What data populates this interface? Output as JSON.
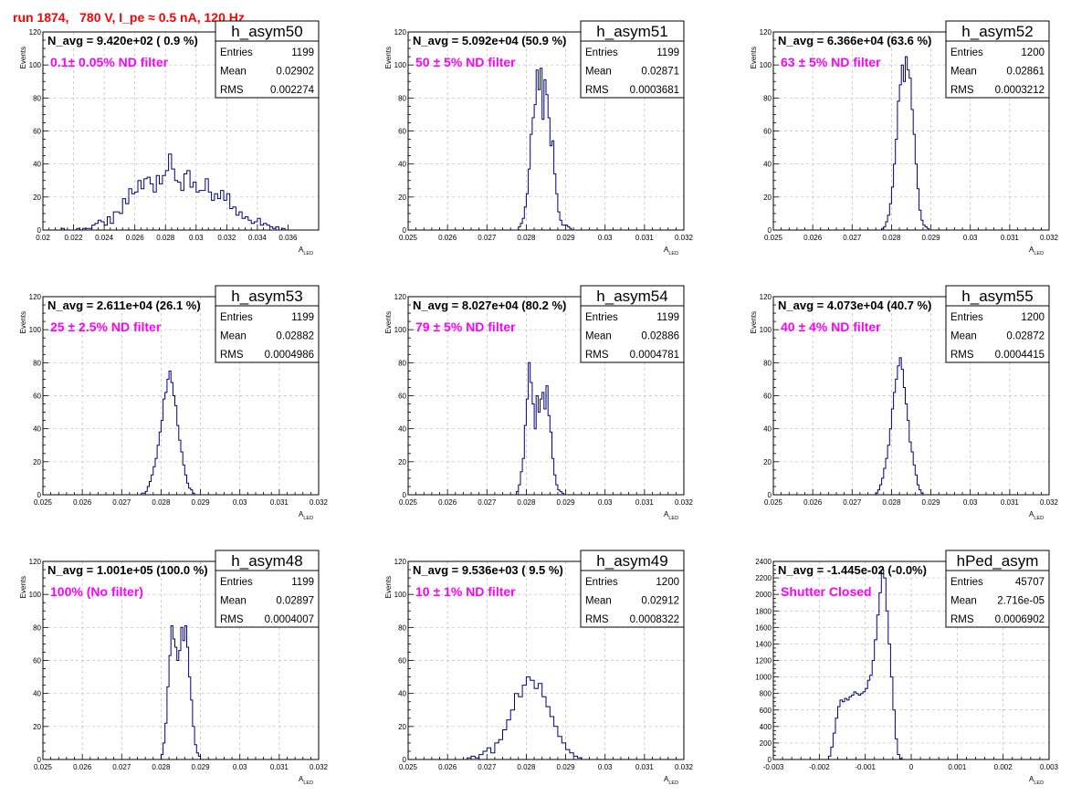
{
  "page_title": "run 1874,   780 V, I_pe ≈ 0.5 nA, 120 Hz",
  "colors": {
    "title": "#ff0000",
    "filter_label": "#ff00ff",
    "histogram": "#000080",
    "grid": "#bbbbbb"
  },
  "chart_data": [
    {
      "type": "histogram",
      "name": "h_asym50",
      "navg": "N_avg = 9.420e+02 ( 0.9 %)",
      "filter": "0.1± 0.05% ND filter",
      "stats": {
        "entries": "1199",
        "mean": "0.02902",
        "rms": "0.002274"
      },
      "xlabel": "A",
      "xlabel_sub": "LED",
      "ylabel": "Events",
      "xlim": [
        0.02,
        0.038
      ],
      "ylim": [
        0,
        120
      ],
      "xticks": [
        "0.02",
        "0.022",
        "0.024",
        "0.026",
        "0.028",
        "0.03",
        "0.032",
        "0.034",
        "0.036"
      ],
      "yticks": [
        "0",
        "20",
        "40",
        "60",
        "80",
        "100",
        "120"
      ],
      "grid": true,
      "bins_from": 0.0212,
      "bin_width": 0.0002,
      "values": [
        1,
        0,
        0,
        0,
        0,
        1,
        0,
        1,
        1,
        1,
        3,
        4,
        6,
        5,
        3,
        8,
        4,
        11,
        11,
        10,
        19,
        16,
        25,
        22,
        23,
        30,
        25,
        31,
        32,
        28,
        23,
        33,
        28,
        33,
        36,
        46,
        37,
        30,
        29,
        24,
        34,
        36,
        26,
        29,
        23,
        24,
        24,
        31,
        23,
        18,
        22,
        19,
        24,
        18,
        22,
        13,
        14,
        9,
        11,
        7,
        8,
        6,
        4,
        5,
        7,
        3,
        4,
        3,
        2,
        1,
        2,
        0,
        1
      ]
    },
    {
      "type": "histogram",
      "name": "h_asym51",
      "navg": "N_avg = 5.092e+04 (50.9 %)",
      "filter": "50 ± 5% ND filter",
      "stats": {
        "entries": "1199",
        "mean": "0.02871",
        "rms": "0.0003681"
      },
      "xlabel": "A",
      "xlabel_sub": "LED",
      "ylabel": "Events",
      "xlim": [
        0.025,
        0.032
      ],
      "ylim": [
        0,
        120
      ],
      "xticks": [
        "0.025",
        "0.026",
        "0.027",
        "0.028",
        "0.029",
        "0.03",
        "0.031",
        "0.032"
      ],
      "yticks": [
        "0",
        "20",
        "40",
        "60",
        "80",
        "100",
        "120"
      ],
      "grid": true,
      "bins_from": 0.0278,
      "bin_width": 5e-05,
      "values": [
        2,
        4,
        7,
        14,
        22,
        37,
        58,
        68,
        76,
        97,
        85,
        98,
        67,
        91,
        82,
        68,
        51,
        54,
        34,
        22,
        11,
        6,
        3,
        3,
        3,
        2,
        1
      ]
    },
    {
      "type": "histogram",
      "name": "h_asym52",
      "navg": "N_avg = 6.366e+04 (63.6 %)",
      "filter": "63 ± 5% ND filter",
      "stats": {
        "entries": "1200",
        "mean": "0.02861",
        "rms": "0.0003212"
      },
      "xlabel": "A",
      "xlabel_sub": "LED",
      "ylabel": "Events",
      "xlim": [
        0.025,
        0.032
      ],
      "ylim": [
        0,
        120
      ],
      "xticks": [
        "0.025",
        "0.026",
        "0.027",
        "0.028",
        "0.029",
        "0.03",
        "0.031",
        "0.032"
      ],
      "yticks": [
        "0",
        "20",
        "40",
        "60",
        "80",
        "100",
        "120"
      ],
      "grid": true,
      "bins_from": 0.02775,
      "bin_width": 5e-05,
      "values": [
        1,
        2,
        5,
        9,
        16,
        26,
        40,
        55,
        78,
        88,
        100,
        90,
        105,
        97,
        92,
        73,
        58,
        40,
        25,
        12,
        6,
        3,
        2,
        1
      ]
    },
    {
      "type": "histogram",
      "name": "h_asym53",
      "navg": "N_avg = 2.611e+04 (26.1 %)",
      "filter": "25 ± 2.5% ND filter",
      "stats": {
        "entries": "1199",
        "mean": "0.02882",
        "rms": "0.0004986"
      },
      "xlabel": "A",
      "xlabel_sub": "LED",
      "ylabel": "Events",
      "xlim": [
        0.025,
        0.032
      ],
      "ylim": [
        0,
        120
      ],
      "xticks": [
        "0.025",
        "0.026",
        "0.027",
        "0.028",
        "0.029",
        "0.03",
        "0.031",
        "0.032"
      ],
      "yticks": [
        "0",
        "20",
        "40",
        "60",
        "80",
        "100",
        "120"
      ],
      "grid": true,
      "bins_from": 0.0275,
      "bin_width": 5e-05,
      "values": [
        1,
        1,
        2,
        5,
        8,
        12,
        17,
        22,
        30,
        38,
        45,
        58,
        62,
        70,
        75,
        68,
        60,
        54,
        42,
        33,
        26,
        18,
        12,
        7,
        4,
        3,
        1
      ]
    },
    {
      "type": "histogram",
      "name": "h_asym54",
      "navg": "N_avg = 8.027e+04 (80.2 %)",
      "filter": "79 ± 5% ND filter",
      "stats": {
        "entries": "1199",
        "mean": "0.02886",
        "rms": "0.0004781"
      },
      "xlabel": "A",
      "xlabel_sub": "LED",
      "ylabel": "Events",
      "xlim": [
        0.025,
        0.032
      ],
      "ylim": [
        0,
        120
      ],
      "xticks": [
        "0.025",
        "0.026",
        "0.027",
        "0.028",
        "0.029",
        "0.03",
        "0.031",
        "0.032"
      ],
      "yticks": [
        "0",
        "20",
        "40",
        "60",
        "80",
        "100",
        "120"
      ],
      "grid": true,
      "bins_from": 0.02775,
      "bin_width": 5e-05,
      "values": [
        2,
        6,
        14,
        22,
        42,
        58,
        80,
        68,
        55,
        40,
        60,
        50,
        58,
        62,
        52,
        66,
        48,
        38,
        22,
        12,
        6,
        3,
        2,
        1
      ]
    },
    {
      "type": "histogram",
      "name": "h_asym55",
      "navg": "N_avg = 4.073e+04 (40.7 %)",
      "filter": "40 ± 4% ND filter",
      "stats": {
        "entries": "1200",
        "mean": "0.02872",
        "rms": "0.0004415"
      },
      "xlabel": "A",
      "xlabel_sub": "LED",
      "ylabel": "Events",
      "xlim": [
        0.025,
        0.032
      ],
      "ylim": [
        0,
        120
      ],
      "xticks": [
        "0.025",
        "0.026",
        "0.027",
        "0.028",
        "0.029",
        "0.03",
        "0.031",
        "0.032"
      ],
      "yticks": [
        "0",
        "20",
        "40",
        "60",
        "80",
        "100",
        "120"
      ],
      "grid": true,
      "bins_from": 0.0276,
      "bin_width": 5e-05,
      "values": [
        1,
        3,
        6,
        10,
        16,
        22,
        30,
        40,
        52,
        62,
        70,
        78,
        83,
        76,
        65,
        55,
        45,
        32,
        26,
        18,
        12,
        6,
        3,
        1
      ]
    },
    {
      "type": "histogram",
      "name": "h_asym48",
      "navg": "N_avg = 1.001e+05 (100.0 %)",
      "filter": "100% (No filter)",
      "stats": {
        "entries": "1199",
        "mean": "0.02897",
        "rms": "0.0004007"
      },
      "xlabel": "A",
      "xlabel_sub": "LED",
      "ylabel": "Events",
      "xlim": [
        0.025,
        0.032
      ],
      "ylim": [
        0,
        120
      ],
      "xticks": [
        "0.025",
        "0.026",
        "0.027",
        "0.028",
        "0.029",
        "0.03",
        "0.031",
        "0.032"
      ],
      "yticks": [
        "0",
        "20",
        "40",
        "60",
        "80",
        "100",
        "120"
      ],
      "grid": true,
      "bins_from": 0.028,
      "bin_width": 5e-05,
      "values": [
        3,
        10,
        22,
        44,
        63,
        81,
        73,
        68,
        60,
        66,
        80,
        72,
        81,
        68,
        50,
        36,
        20,
        9,
        4,
        2
      ]
    },
    {
      "type": "histogram",
      "name": "h_asym49",
      "navg": "N_avg = 9.536e+03 ( 9.5 %)",
      "filter": "10 ± 1% ND filter",
      "stats": {
        "entries": "1200",
        "mean": "0.02912",
        "rms": "0.0008322"
      },
      "xlabel": "A",
      "xlabel_sub": "LED",
      "ylabel": "Events",
      "xlim": [
        0.025,
        0.032
      ],
      "ylim": [
        0,
        120
      ],
      "xticks": [
        "0.025",
        "0.026",
        "0.027",
        "0.028",
        "0.029",
        "0.03",
        "0.031",
        "0.032"
      ],
      "yticks": [
        "0",
        "20",
        "40",
        "60",
        "80",
        "100",
        "120"
      ],
      "grid": true,
      "bins_from": 0.0265,
      "bin_width": 0.0001,
      "values": [
        1,
        2,
        1,
        3,
        5,
        7,
        4,
        10,
        12,
        18,
        24,
        30,
        40,
        38,
        45,
        50,
        48,
        43,
        46,
        38,
        32,
        26,
        20,
        14,
        10,
        6,
        4,
        2,
        1
      ]
    },
    {
      "type": "histogram",
      "name": "hPed_asym",
      "navg": "N_avg = -1.445e-02 (-0.0%)",
      "filter": "Shutter Closed",
      "stats": {
        "entries": "45707",
        "mean": "2.716e-05",
        "rms": "0.0006902"
      },
      "xlabel": "A",
      "xlabel_sub": "LED",
      "ylabel": "",
      "xlim": [
        -0.003,
        0.003
      ],
      "ylim": [
        0,
        2400
      ],
      "xticks": [
        "-0.003",
        "-0.002",
        "-0.001",
        "0",
        "0.001",
        "0.002",
        "0.003"
      ],
      "yticks": [
        "0",
        "200",
        "400",
        "600",
        "800",
        "1000",
        "1200",
        "1400",
        "1600",
        "1800",
        "2000",
        "2200",
        "2400"
      ],
      "grid": true,
      "bins_from": -0.0018,
      "bin_width": 5e-05,
      "values": [
        40,
        150,
        320,
        500,
        640,
        720,
        700,
        740,
        720,
        760,
        780,
        820,
        800,
        780,
        800,
        820,
        860,
        960,
        1020,
        1200,
        1450,
        1750,
        2020,
        2300,
        2200,
        1800,
        1400,
        1000,
        600,
        250,
        60,
        10
      ]
    }
  ]
}
